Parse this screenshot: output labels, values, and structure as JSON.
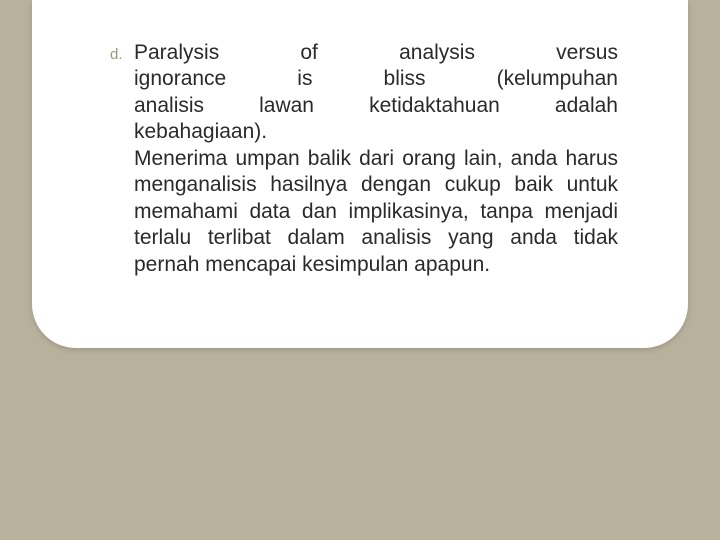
{
  "slide": {
    "background_color": "#b8b19c",
    "card_background": "#ffffff",
    "marker_color": "#a19773",
    "text_color": "#2a2a2a",
    "font_family": "Verdana",
    "title_fontsize": 21,
    "marker_fontsize": 15,
    "list_marker": "d.",
    "title_line_1": "Paralysis of analysis versus",
    "title_line_2": "ignorance is bliss (kelumpuhan",
    "title_line_3": "analisis lawan ketidaktahuan adalah",
    "title_line_4": "kebahagiaan).",
    "body": "Menerima umpan balik dari orang lain, anda harus menganalisis hasilnya dengan cukup baik untuk memahami data dan implikasinya, tanpa menjadi terlalu terlibat dalam analisis yang anda tidak pernah mencapai kesimpulan apapun."
  }
}
